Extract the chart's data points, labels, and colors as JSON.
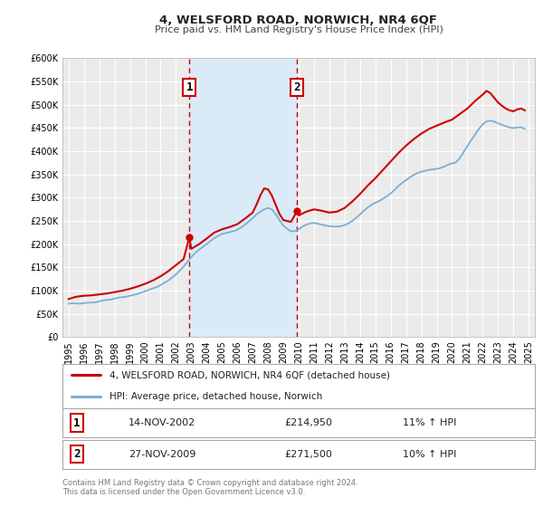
{
  "title": "4, WELSFORD ROAD, NORWICH, NR4 6QF",
  "subtitle": "Price paid vs. HM Land Registry's House Price Index (HPI)",
  "background_color": "#ffffff",
  "plot_bg_color": "#ebebeb",
  "grid_color": "#ffffff",
  "ylim": [
    0,
    600000
  ],
  "yticks": [
    0,
    50000,
    100000,
    150000,
    200000,
    250000,
    300000,
    350000,
    400000,
    450000,
    500000,
    550000,
    600000
  ],
  "ytick_labels": [
    "£0",
    "£50K",
    "£100K",
    "£150K",
    "£200K",
    "£250K",
    "£300K",
    "£350K",
    "£400K",
    "£450K",
    "£500K",
    "£550K",
    "£600K"
  ],
  "xlim_start": 1994.6,
  "xlim_end": 2025.4,
  "xticks": [
    1995,
    1996,
    1997,
    1998,
    1999,
    2000,
    2001,
    2002,
    2003,
    2004,
    2005,
    2006,
    2007,
    2008,
    2009,
    2010,
    2011,
    2012,
    2013,
    2014,
    2015,
    2016,
    2017,
    2018,
    2019,
    2020,
    2021,
    2022,
    2023,
    2024,
    2025
  ],
  "sale1_x": 2002.87,
  "sale1_y": 214950,
  "sale1_label": "1",
  "sale1_date": "14-NOV-2002",
  "sale1_price": "£214,950",
  "sale1_hpi": "11% ↑ HPI",
  "sale2_x": 2009.9,
  "sale2_y": 271500,
  "sale2_label": "2",
  "sale2_date": "27-NOV-2009",
  "sale2_price": "£271,500",
  "sale2_hpi": "10% ↑ HPI",
  "shade_color": "#daeaf7",
  "dashed_line_color": "#cc0000",
  "property_line_color": "#cc0000",
  "hpi_line_color": "#7bafd4",
  "legend_label1": "4, WELSFORD ROAD, NORWICH, NR4 6QF (detached house)",
  "legend_label2": "HPI: Average price, detached house, Norwich",
  "footer_text": "Contains HM Land Registry data © Crown copyright and database right 2024.\nThis data is licensed under the Open Government Licence v3.0.",
  "hpi_data": [
    [
      1995.0,
      72000
    ],
    [
      1995.25,
      73000
    ],
    [
      1995.5,
      72500
    ],
    [
      1995.75,
      72000
    ],
    [
      1996.0,
      73500
    ],
    [
      1996.25,
      74000
    ],
    [
      1996.5,
      74500
    ],
    [
      1996.75,
      75000
    ],
    [
      1997.0,
      77000
    ],
    [
      1997.25,
      79000
    ],
    [
      1997.5,
      80000
    ],
    [
      1997.75,
      81000
    ],
    [
      1998.0,
      83000
    ],
    [
      1998.25,
      85000
    ],
    [
      1998.5,
      86000
    ],
    [
      1998.75,
      87000
    ],
    [
      1999.0,
      89000
    ],
    [
      1999.25,
      91000
    ],
    [
      1999.5,
      93000
    ],
    [
      1999.75,
      96000
    ],
    [
      2000.0,
      99000
    ],
    [
      2000.25,
      102000
    ],
    [
      2000.5,
      105000
    ],
    [
      2000.75,
      108000
    ],
    [
      2001.0,
      112000
    ],
    [
      2001.25,
      117000
    ],
    [
      2001.5,
      122000
    ],
    [
      2001.75,
      128000
    ],
    [
      2002.0,
      135000
    ],
    [
      2002.25,
      143000
    ],
    [
      2002.5,
      152000
    ],
    [
      2002.75,
      162000
    ],
    [
      2003.0,
      172000
    ],
    [
      2003.25,
      181000
    ],
    [
      2003.5,
      188000
    ],
    [
      2003.75,
      194000
    ],
    [
      2004.0,
      200000
    ],
    [
      2004.25,
      207000
    ],
    [
      2004.5,
      213000
    ],
    [
      2004.75,
      218000
    ],
    [
      2005.0,
      222000
    ],
    [
      2005.25,
      224000
    ],
    [
      2005.5,
      226000
    ],
    [
      2005.75,
      228000
    ],
    [
      2006.0,
      231000
    ],
    [
      2006.25,
      236000
    ],
    [
      2006.5,
      242000
    ],
    [
      2006.75,
      249000
    ],
    [
      2007.0,
      256000
    ],
    [
      2007.25,
      264000
    ],
    [
      2007.5,
      270000
    ],
    [
      2007.75,
      275000
    ],
    [
      2008.0,
      278000
    ],
    [
      2008.25,
      275000
    ],
    [
      2008.5,
      265000
    ],
    [
      2008.75,
      252000
    ],
    [
      2009.0,
      240000
    ],
    [
      2009.25,
      233000
    ],
    [
      2009.5,
      228000
    ],
    [
      2009.75,
      228000
    ],
    [
      2010.0,
      232000
    ],
    [
      2010.25,
      238000
    ],
    [
      2010.5,
      242000
    ],
    [
      2010.75,
      245000
    ],
    [
      2011.0,
      246000
    ],
    [
      2011.25,
      244000
    ],
    [
      2011.5,
      242000
    ],
    [
      2011.75,
      240000
    ],
    [
      2012.0,
      239000
    ],
    [
      2012.25,
      238000
    ],
    [
      2012.5,
      238000
    ],
    [
      2012.75,
      239000
    ],
    [
      2013.0,
      241000
    ],
    [
      2013.25,
      245000
    ],
    [
      2013.5,
      250000
    ],
    [
      2013.75,
      257000
    ],
    [
      2014.0,
      264000
    ],
    [
      2014.25,
      272000
    ],
    [
      2014.5,
      279000
    ],
    [
      2014.75,
      285000
    ],
    [
      2015.0,
      289000
    ],
    [
      2015.25,
      293000
    ],
    [
      2015.5,
      298000
    ],
    [
      2015.75,
      303000
    ],
    [
      2016.0,
      309000
    ],
    [
      2016.25,
      317000
    ],
    [
      2016.5,
      325000
    ],
    [
      2016.75,
      332000
    ],
    [
      2017.0,
      338000
    ],
    [
      2017.25,
      344000
    ],
    [
      2017.5,
      349000
    ],
    [
      2017.75,
      353000
    ],
    [
      2018.0,
      356000
    ],
    [
      2018.25,
      358000
    ],
    [
      2018.5,
      360000
    ],
    [
      2018.75,
      361000
    ],
    [
      2019.0,
      362000
    ],
    [
      2019.25,
      364000
    ],
    [
      2019.5,
      367000
    ],
    [
      2019.75,
      371000
    ],
    [
      2020.0,
      374000
    ],
    [
      2020.25,
      376000
    ],
    [
      2020.5,
      385000
    ],
    [
      2020.75,
      398000
    ],
    [
      2021.0,
      411000
    ],
    [
      2021.25,
      424000
    ],
    [
      2021.5,
      436000
    ],
    [
      2021.75,
      448000
    ],
    [
      2022.0,
      458000
    ],
    [
      2022.25,
      464000
    ],
    [
      2022.5,
      466000
    ],
    [
      2022.75,
      464000
    ],
    [
      2023.0,
      460000
    ],
    [
      2023.25,
      457000
    ],
    [
      2023.5,
      454000
    ],
    [
      2023.75,
      451000
    ],
    [
      2024.0,
      450000
    ],
    [
      2024.25,
      451000
    ],
    [
      2024.5,
      452000
    ],
    [
      2024.75,
      448000
    ]
  ],
  "property_data": [
    [
      1995.0,
      82000
    ],
    [
      1995.5,
      87000
    ],
    [
      1996.0,
      89000
    ],
    [
      1996.5,
      90000
    ],
    [
      1997.0,
      92000
    ],
    [
      1997.5,
      94000
    ],
    [
      1998.0,
      97000
    ],
    [
      1998.5,
      100000
    ],
    [
      1999.0,
      104000
    ],
    [
      1999.5,
      109000
    ],
    [
      2000.0,
      115000
    ],
    [
      2000.5,
      122000
    ],
    [
      2001.0,
      131000
    ],
    [
      2001.5,
      142000
    ],
    [
      2002.0,
      155000
    ],
    [
      2002.5,
      168000
    ],
    [
      2002.87,
      214950
    ],
    [
      2003.0,
      190000
    ],
    [
      2003.5,
      200000
    ],
    [
      2004.0,
      212000
    ],
    [
      2004.5,
      225000
    ],
    [
      2005.0,
      232000
    ],
    [
      2005.5,
      237000
    ],
    [
      2006.0,
      243000
    ],
    [
      2006.5,
      255000
    ],
    [
      2007.0,
      268000
    ],
    [
      2007.25,
      285000
    ],
    [
      2007.5,
      305000
    ],
    [
      2007.75,
      320000
    ],
    [
      2008.0,
      318000
    ],
    [
      2008.25,
      305000
    ],
    [
      2008.5,
      285000
    ],
    [
      2008.75,
      265000
    ],
    [
      2009.0,
      252000
    ],
    [
      2009.5,
      248000
    ],
    [
      2009.9,
      271500
    ],
    [
      2010.0,
      262000
    ],
    [
      2010.5,
      270000
    ],
    [
      2011.0,
      275000
    ],
    [
      2011.5,
      272000
    ],
    [
      2012.0,
      268000
    ],
    [
      2012.5,
      270000
    ],
    [
      2013.0,
      278000
    ],
    [
      2013.5,
      292000
    ],
    [
      2014.0,
      308000
    ],
    [
      2014.5,
      326000
    ],
    [
      2015.0,
      342000
    ],
    [
      2015.5,
      360000
    ],
    [
      2016.0,
      378000
    ],
    [
      2016.5,
      396000
    ],
    [
      2017.0,
      412000
    ],
    [
      2017.5,
      426000
    ],
    [
      2018.0,
      438000
    ],
    [
      2018.5,
      448000
    ],
    [
      2019.0,
      455000
    ],
    [
      2019.5,
      462000
    ],
    [
      2020.0,
      468000
    ],
    [
      2020.5,
      480000
    ],
    [
      2021.0,
      492000
    ],
    [
      2021.5,
      508000
    ],
    [
      2022.0,
      522000
    ],
    [
      2022.25,
      530000
    ],
    [
      2022.5,
      525000
    ],
    [
      2022.75,
      515000
    ],
    [
      2023.0,
      505000
    ],
    [
      2023.25,
      498000
    ],
    [
      2023.5,
      492000
    ],
    [
      2023.75,
      488000
    ],
    [
      2024.0,
      486000
    ],
    [
      2024.25,
      490000
    ],
    [
      2024.5,
      492000
    ],
    [
      2024.75,
      488000
    ]
  ]
}
